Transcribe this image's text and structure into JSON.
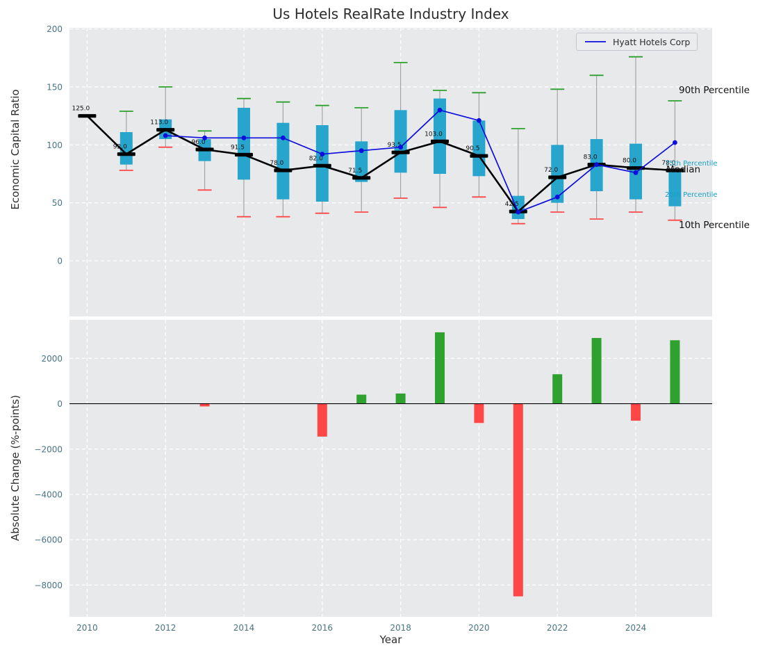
{
  "title": "Us Hotels RealRate Industry Index",
  "legend": {
    "hyatt_label": "Hyatt Hotels Corp"
  },
  "annotations": {
    "p90": "90th Percentile",
    "p75": "75th Percentile",
    "median": "Median",
    "p25": "25th Percentile",
    "p10": "10th Percentile"
  },
  "colors": {
    "plot_bg": "#e8e9eb",
    "grid": "#ffffff",
    "tick": "#4a7486",
    "text": "#2d2d2d",
    "box": "#28a5cc",
    "whisker": "#a3a3a3",
    "p90_cap": "#2ca02c",
    "p10_cap": "#ff4747",
    "median_line": "#000000",
    "hyatt_line": "#0d0ddc",
    "bar_positive": "#2fa12f",
    "bar_negative": "#ff4747",
    "annotation_cyan": "#17a0c4"
  },
  "chart_data": [
    {
      "type": "boxplot+line",
      "ylabel": "Economic Capital Ratio",
      "ylim": [
        -48,
        201
      ],
      "yticks": [
        0,
        50,
        100,
        150,
        200
      ],
      "xlim": [
        2009.55,
        2025.95
      ],
      "xticks": [
        2010,
        2012,
        2014,
        2016,
        2018,
        2020,
        2022,
        2024
      ],
      "years": [
        2010,
        2011,
        2012,
        2013,
        2014,
        2015,
        2016,
        2017,
        2018,
        2019,
        2020,
        2021,
        2022,
        2023,
        2024,
        2025
      ],
      "median": [
        125.0,
        92.0,
        113.0,
        96.0,
        91.5,
        78.0,
        82.0,
        71.5,
        93.5,
        103.0,
        90.5,
        42.5,
        72.0,
        83.0,
        80.0,
        78.0
      ],
      "p25": [
        null,
        83,
        105,
        86,
        70,
        53,
        51,
        68,
        76,
        75,
        73,
        36,
        50,
        60,
        53,
        47
      ],
      "p75": [
        null,
        111,
        122,
        105,
        132,
        119,
        117,
        103,
        130,
        140,
        121,
        56,
        100,
        105,
        101,
        79
      ],
      "p10": [
        null,
        78,
        98,
        61,
        38,
        38,
        41,
        42,
        54,
        46,
        55,
        32,
        42,
        36,
        42,
        35
      ],
      "p90": [
        null,
        129,
        150,
        112,
        140,
        137,
        134,
        132,
        171,
        147,
        145,
        114,
        148,
        160,
        176,
        138
      ],
      "hyatt": {
        "years": [
          2012,
          2013,
          2014,
          2015,
          2016,
          2017,
          2018,
          2019,
          2020,
          2021,
          2022,
          2023,
          2024,
          2025
        ],
        "values": [
          108,
          106,
          106,
          106,
          92,
          95,
          98,
          130,
          121,
          42,
          55,
          83,
          76,
          102
        ]
      }
    },
    {
      "type": "bar",
      "ylabel": "Absolute Change (%-points)",
      "xlabel": "Year",
      "ylim": [
        -9400,
        3700
      ],
      "yticks": [
        2000,
        0,
        -2000,
        -4000,
        -6000,
        -8000
      ],
      "xticks": [
        2010,
        2012,
        2014,
        2016,
        2018,
        2020,
        2022,
        2024
      ],
      "years": [
        2010,
        2011,
        2012,
        2013,
        2014,
        2015,
        2016,
        2017,
        2018,
        2019,
        2020,
        2021,
        2022,
        2023,
        2024,
        2025
      ],
      "values": [
        0,
        0,
        0,
        -120,
        0,
        0,
        -1450,
        400,
        450,
        3150,
        -850,
        -8500,
        1300,
        2900,
        -750,
        2800
      ]
    }
  ]
}
